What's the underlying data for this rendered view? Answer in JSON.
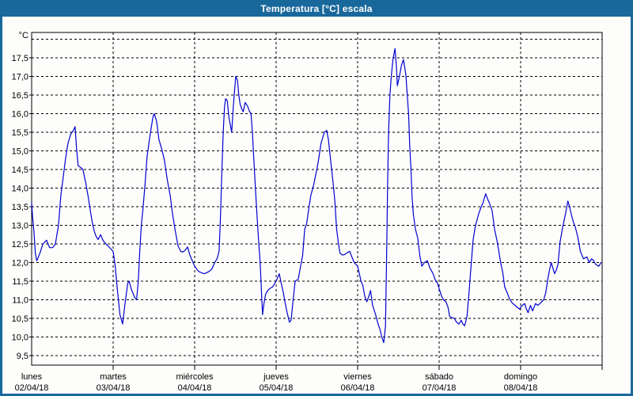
{
  "window": {
    "title": "Temperatura [°C] escala"
  },
  "colors": {
    "titlebar": "#19689c",
    "window_border": "#19689c",
    "plot_line": "#0000d0",
    "grid": "#000000",
    "frame": "#000000",
    "background": "#fdfefb",
    "label_text": "#000000"
  },
  "chart_data": {
    "type": "line",
    "title": "Temperatura [°C] escala",
    "legend": "none",
    "grid": "dashed",
    "y_axis": {
      "unit_label": "°C",
      "tick_labels": [
        "17,5",
        "17,0",
        "16,5",
        "16,0",
        "15,5",
        "15,0",
        "14,5",
        "14,0",
        "13,5",
        "13,0",
        "12,5",
        "12,0",
        "11,5",
        "11,0",
        "10,5",
        "10,0",
        "9,5"
      ],
      "tick_values": [
        17.5,
        17.0,
        16.5,
        16.0,
        15.5,
        15.0,
        14.5,
        14.0,
        13.5,
        13.0,
        12.5,
        12.0,
        11.5,
        11.0,
        10.5,
        10.0,
        9.5
      ],
      "grid_top_value": 18.0,
      "grid_bottom_value": 9.5,
      "step": 0.5
    },
    "x_axis": {
      "range_hours": [
        0,
        168
      ],
      "days": [
        {
          "name": "lunes",
          "date": "02/04/18"
        },
        {
          "name": "martes",
          "date": "03/04/18"
        },
        {
          "name": "miércoles",
          "date": "04/04/18"
        },
        {
          "name": "jueves",
          "date": "05/04/18"
        },
        {
          "name": "viernes",
          "date": "06/04/18"
        },
        {
          "name": "sábado",
          "date": "07/04/18"
        },
        {
          "name": "domingo",
          "date": "08/04/18"
        }
      ]
    },
    "series": [
      {
        "name": "Temperatura",
        "points": [
          [
            0,
            13.6
          ],
          [
            0.3,
            13.2
          ],
          [
            0.7,
            12.8
          ],
          [
            1.1,
            12.25
          ],
          [
            1.5,
            12.05
          ],
          [
            2,
            12.15
          ],
          [
            2.6,
            12.3
          ],
          [
            3.3,
            12.5
          ],
          [
            4.4,
            12.6
          ],
          [
            5.3,
            12.4
          ],
          [
            6.2,
            12.4
          ],
          [
            7,
            12.5
          ],
          [
            7.9,
            13.0
          ],
          [
            8.6,
            13.8
          ],
          [
            9.3,
            14.3
          ],
          [
            10,
            14.8
          ],
          [
            10.7,
            15.2
          ],
          [
            11.5,
            15.45
          ],
          [
            12.3,
            15.55
          ],
          [
            12.8,
            15.65
          ],
          [
            13.2,
            15.1
          ],
          [
            13.7,
            14.6
          ],
          [
            14.5,
            14.55
          ],
          [
            15.1,
            14.5
          ],
          [
            16,
            14.1
          ],
          [
            16.6,
            13.8
          ],
          [
            17.2,
            13.45
          ],
          [
            17.8,
            13.1
          ],
          [
            18.4,
            12.85
          ],
          [
            19,
            12.7
          ],
          [
            19.6,
            12.62
          ],
          [
            20.3,
            12.75
          ],
          [
            21.1,
            12.58
          ],
          [
            21.9,
            12.5
          ],
          [
            22.8,
            12.42
          ],
          [
            23.5,
            12.35
          ],
          [
            24,
            12.3
          ],
          [
            24.6,
            11.9
          ],
          [
            25.2,
            11.3
          ],
          [
            26,
            10.6
          ],
          [
            26.8,
            10.35
          ],
          [
            27.5,
            10.9
          ],
          [
            28.3,
            11.45
          ],
          [
            28.7,
            11.5
          ],
          [
            29.3,
            11.3
          ],
          [
            29.8,
            11.18
          ],
          [
            30.4,
            11.05
          ],
          [
            30.9,
            11.0
          ],
          [
            31.4,
            11.5
          ],
          [
            31.8,
            12.25
          ],
          [
            32.3,
            13.0
          ],
          [
            32.7,
            13.35
          ],
          [
            33.4,
            14.1
          ],
          [
            34,
            14.85
          ],
          [
            34.6,
            15.25
          ],
          [
            35.1,
            15.55
          ],
          [
            35.7,
            15.9
          ],
          [
            36.1,
            16.0
          ],
          [
            36.8,
            15.8
          ],
          [
            37.5,
            15.3
          ],
          [
            38.3,
            15.05
          ],
          [
            39.1,
            14.75
          ],
          [
            39.9,
            14.25
          ],
          [
            40.8,
            13.8
          ],
          [
            41.5,
            13.3
          ],
          [
            42.2,
            12.9
          ],
          [
            43.1,
            12.45
          ],
          [
            43.9,
            12.3
          ],
          [
            44.4,
            12.28
          ],
          [
            45.1,
            12.32
          ],
          [
            45.9,
            12.42
          ],
          [
            46.6,
            12.2
          ],
          [
            47.3,
            12.05
          ],
          [
            48,
            11.9
          ],
          [
            48.8,
            11.8
          ],
          [
            49.4,
            11.75
          ],
          [
            50.2,
            11.72
          ],
          [
            50.9,
            11.7
          ],
          [
            51.6,
            11.73
          ],
          [
            52.2,
            11.76
          ],
          [
            52.8,
            11.8
          ],
          [
            53.2,
            11.85
          ],
          [
            53.9,
            12.0
          ],
          [
            54.6,
            12.1
          ],
          [
            55.2,
            12.3
          ],
          [
            55.6,
            13.2
          ],
          [
            56,
            14.4
          ],
          [
            56.4,
            15.5
          ],
          [
            56.8,
            16.2
          ],
          [
            57.1,
            16.4
          ],
          [
            57.6,
            16.35
          ],
          [
            58.1,
            15.9
          ],
          [
            58.9,
            15.5
          ],
          [
            59.4,
            16.2
          ],
          [
            60.1,
            17.0
          ],
          [
            60.6,
            16.9
          ],
          [
            61,
            16.5
          ],
          [
            61.4,
            16.25
          ],
          [
            62,
            16.1
          ],
          [
            62.3,
            16.05
          ],
          [
            62.9,
            16.3
          ],
          [
            63.6,
            16.2
          ],
          [
            64.2,
            16.05
          ],
          [
            64.6,
            16.0
          ],
          [
            65,
            15.5
          ],
          [
            65.3,
            15.0
          ],
          [
            65.9,
            14.0
          ],
          [
            66.4,
            13.2
          ],
          [
            66.9,
            12.5
          ],
          [
            67.3,
            12.0
          ],
          [
            67.7,
            11.2
          ],
          [
            68,
            10.6
          ],
          [
            68.4,
            10.9
          ],
          [
            68.9,
            11.15
          ],
          [
            69.5,
            11.25
          ],
          [
            70.1,
            11.3
          ],
          [
            71,
            11.35
          ],
          [
            72,
            11.5
          ],
          [
            72.9,
            11.7
          ],
          [
            73.5,
            11.45
          ],
          [
            74.1,
            11.2
          ],
          [
            75,
            10.75
          ],
          [
            75.9,
            10.4
          ],
          [
            76.4,
            10.45
          ],
          [
            76.9,
            10.9
          ],
          [
            77.6,
            11.5
          ],
          [
            78.5,
            11.55
          ],
          [
            79.2,
            11.9
          ],
          [
            79.8,
            12.2
          ],
          [
            80.4,
            12.9
          ],
          [
            81,
            13.05
          ],
          [
            81.7,
            13.5
          ],
          [
            82.2,
            13.8
          ],
          [
            83.1,
            14.1
          ],
          [
            84.3,
            14.65
          ],
          [
            85.2,
            15.2
          ],
          [
            86.2,
            15.5
          ],
          [
            86.9,
            15.55
          ],
          [
            87.4,
            15.3
          ],
          [
            87.8,
            14.95
          ],
          [
            88.7,
            14.2
          ],
          [
            89.3,
            13.65
          ],
          [
            89.8,
            12.9
          ],
          [
            90.3,
            12.55
          ],
          [
            90.8,
            12.25
          ],
          [
            91.6,
            12.2
          ],
          [
            92.3,
            12.22
          ],
          [
            93,
            12.27
          ],
          [
            93.7,
            12.3
          ],
          [
            94.3,
            12.15
          ],
          [
            95,
            12.0
          ],
          [
            96,
            11.9
          ],
          [
            97,
            11.5
          ],
          [
            97.5,
            11.4
          ],
          [
            98.1,
            11.1
          ],
          [
            98.7,
            10.95
          ],
          [
            99.3,
            11.1
          ],
          [
            99.8,
            11.25
          ],
          [
            100.4,
            10.85
          ],
          [
            101.3,
            10.6
          ],
          [
            102,
            10.35
          ],
          [
            102.6,
            10.2
          ],
          [
            103.1,
            10.0
          ],
          [
            103.7,
            9.85
          ],
          [
            104.2,
            10.3
          ],
          [
            104.5,
            12.0
          ],
          [
            104.8,
            14.0
          ],
          [
            105.1,
            15.5
          ],
          [
            105.5,
            16.5
          ],
          [
            105.9,
            17.0
          ],
          [
            106.4,
            17.45
          ],
          [
            107,
            17.75
          ],
          [
            107.4,
            17.3
          ],
          [
            107.7,
            16.75
          ],
          [
            108.3,
            17.0
          ],
          [
            108.9,
            17.3
          ],
          [
            109.5,
            17.45
          ],
          [
            110.2,
            17.05
          ],
          [
            110.6,
            16.5
          ],
          [
            111,
            16.0
          ],
          [
            111.3,
            15.2
          ],
          [
            111.7,
            14.5
          ],
          [
            112,
            13.8
          ],
          [
            112.4,
            13.3
          ],
          [
            113,
            12.9
          ],
          [
            113.7,
            12.65
          ],
          [
            114.3,
            12.2
          ],
          [
            114.9,
            11.9
          ],
          [
            115.7,
            12.0
          ],
          [
            116.5,
            12.05
          ],
          [
            117.3,
            11.85
          ],
          [
            118.2,
            11.7
          ],
          [
            119,
            11.5
          ],
          [
            119.5,
            11.45
          ],
          [
            120,
            11.3
          ],
          [
            120.7,
            11.1
          ],
          [
            121.3,
            11.0
          ],
          [
            122,
            10.95
          ],
          [
            122.6,
            10.8
          ],
          [
            123.1,
            10.55
          ],
          [
            123.8,
            10.52
          ],
          [
            124.5,
            10.5
          ],
          [
            125.1,
            10.4
          ],
          [
            125.8,
            10.35
          ],
          [
            126.5,
            10.45
          ],
          [
            127,
            10.35
          ],
          [
            127.5,
            10.3
          ],
          [
            128.2,
            10.55
          ],
          [
            128.8,
            11.2
          ],
          [
            129.4,
            11.9
          ],
          [
            130,
            12.6
          ],
          [
            130.6,
            12.95
          ],
          [
            131.6,
            13.3
          ],
          [
            132.4,
            13.5
          ],
          [
            132.9,
            13.6
          ],
          [
            133.7,
            13.85
          ],
          [
            134.3,
            13.7
          ],
          [
            134.8,
            13.6
          ],
          [
            135.6,
            13.4
          ],
          [
            136.3,
            12.9
          ],
          [
            137,
            12.6
          ],
          [
            137.5,
            12.35
          ],
          [
            138.1,
            12.0
          ],
          [
            138.7,
            11.75
          ],
          [
            139.3,
            11.35
          ],
          [
            140,
            11.2
          ],
          [
            140.6,
            11.05
          ],
          [
            141.2,
            10.95
          ],
          [
            141.7,
            10.9
          ],
          [
            142.4,
            10.85
          ],
          [
            142.9,
            10.8
          ],
          [
            143.7,
            10.75
          ],
          [
            144,
            10.8
          ],
          [
            144.5,
            10.85
          ],
          [
            145.2,
            10.9
          ],
          [
            145.7,
            10.75
          ],
          [
            146.2,
            10.65
          ],
          [
            146.9,
            10.85
          ],
          [
            147.5,
            10.7
          ],
          [
            148.4,
            10.9
          ],
          [
            149,
            10.85
          ],
          [
            149.7,
            10.9
          ],
          [
            150.2,
            10.95
          ],
          [
            150.8,
            11.0
          ],
          [
            151.4,
            11.2
          ],
          [
            151.9,
            11.5
          ],
          [
            152.5,
            11.8
          ],
          [
            153,
            12.0
          ],
          [
            153.5,
            11.85
          ],
          [
            154,
            11.7
          ],
          [
            154.5,
            11.8
          ],
          [
            155,
            11.95
          ],
          [
            155.6,
            12.55
          ],
          [
            156.1,
            12.8
          ],
          [
            156.5,
            13.0
          ],
          [
            157.2,
            13.3
          ],
          [
            157.9,
            13.65
          ],
          [
            158.4,
            13.5
          ],
          [
            158.9,
            13.3
          ],
          [
            159.5,
            13.1
          ],
          [
            160.1,
            12.95
          ],
          [
            160.8,
            12.7
          ],
          [
            161.6,
            12.3
          ],
          [
            162.5,
            12.1
          ],
          [
            163.5,
            12.15
          ],
          [
            164.2,
            12.0
          ],
          [
            164.9,
            12.1
          ],
          [
            165.5,
            12.05
          ],
          [
            166.1,
            11.95
          ],
          [
            167,
            11.9
          ],
          [
            167.7,
            12.0
          ]
        ]
      }
    ]
  }
}
